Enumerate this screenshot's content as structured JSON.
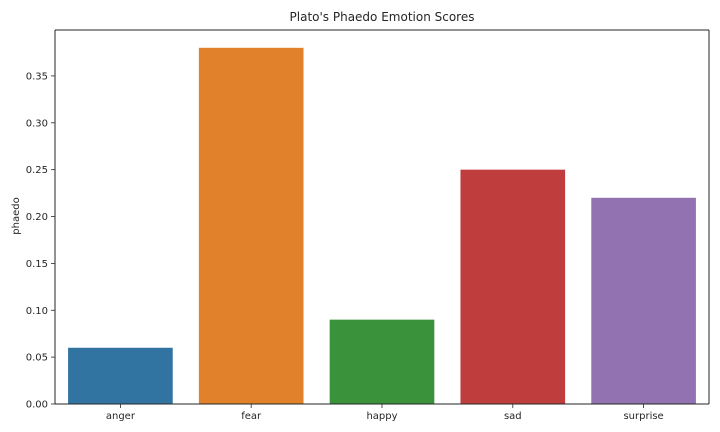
{
  "chart_data": {
    "type": "bar",
    "title": "Plato's Phaedo Emotion Scores",
    "xlabel": "",
    "ylabel": "phaedo",
    "categories": [
      "anger",
      "fear",
      "happy",
      "sad",
      "surprise"
    ],
    "values": [
      0.06,
      0.38,
      0.09,
      0.25,
      0.22
    ],
    "colors": [
      "#3274a1",
      "#e1812c",
      "#3a923a",
      "#c03d3e",
      "#9372b2"
    ],
    "ylim": [
      0,
      0.399
    ],
    "yticks": [
      0.0,
      0.05,
      0.1,
      0.15,
      0.2,
      0.25,
      0.3,
      0.35
    ],
    "ytick_labels": [
      "0.00",
      "0.05",
      "0.10",
      "0.15",
      "0.20",
      "0.25",
      "0.30",
      "0.35"
    ],
    "grid": false,
    "legend": "none"
  }
}
